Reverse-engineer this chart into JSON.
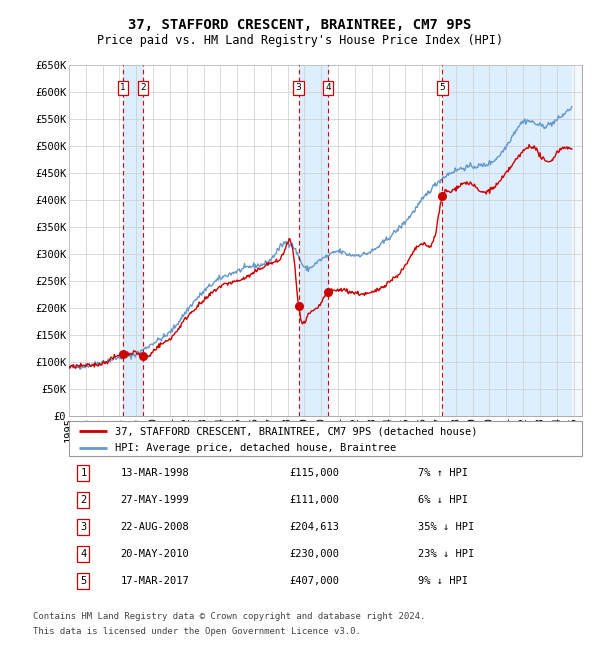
{
  "title": "37, STAFFORD CRESCENT, BRAINTREE, CM7 9PS",
  "subtitle": "Price paid vs. HM Land Registry's House Price Index (HPI)",
  "legend_line1": "37, STAFFORD CRESCENT, BRAINTREE, CM7 9PS (detached house)",
  "legend_line2": "HPI: Average price, detached house, Braintree",
  "footnote1": "Contains HM Land Registry data © Crown copyright and database right 2024.",
  "footnote2": "This data is licensed under the Open Government Licence v3.0.",
  "ylim": [
    0,
    650000
  ],
  "yticks": [
    0,
    50000,
    100000,
    150000,
    200000,
    250000,
    300000,
    350000,
    400000,
    450000,
    500000,
    550000,
    600000,
    650000
  ],
  "ytick_labels": [
    "£0",
    "£50K",
    "£100K",
    "£150K",
    "£200K",
    "£250K",
    "£300K",
    "£350K",
    "£400K",
    "£450K",
    "£500K",
    "£550K",
    "£600K",
    "£650K"
  ],
  "xlim_start": 1995.0,
  "xlim_end": 2025.5,
  "transactions": [
    {
      "num": 1,
      "date_label": "13-MAR-1998",
      "price": 115000,
      "pct": "7%",
      "dir": "↑",
      "year": 1998.2
    },
    {
      "num": 2,
      "date_label": "27-MAY-1999",
      "price": 111000,
      "pct": "6%",
      "dir": "↓",
      "year": 1999.4
    },
    {
      "num": 3,
      "date_label": "22-AUG-2008",
      "price": 204613,
      "pct": "35%",
      "dir": "↓",
      "year": 2008.65
    },
    {
      "num": 4,
      "date_label": "20-MAY-2010",
      "price": 230000,
      "pct": "23%",
      "dir": "↓",
      "year": 2010.4
    },
    {
      "num": 5,
      "date_label": "17-MAR-2017",
      "price": 407000,
      "pct": "9%",
      "dir": "↓",
      "year": 2017.2
    }
  ],
  "red_line_color": "#cc0000",
  "blue_line_color": "#6699cc",
  "background_color": "#ffffff",
  "grid_color": "#cccccc",
  "shade_color": "#ddeeff",
  "vline_color": "#cc0000",
  "box_edge_color": "#cc0000",
  "title_fontsize": 10,
  "subtitle_fontsize": 8.5,
  "axis_fontsize": 7.5,
  "legend_fontsize": 7.5,
  "table_fontsize": 7.5,
  "footnote_fontsize": 6.5
}
